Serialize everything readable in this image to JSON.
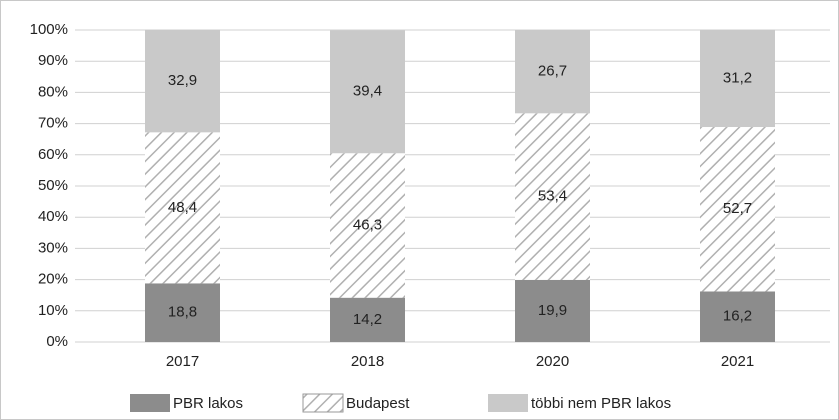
{
  "chart_data": {
    "type": "stacked_bar",
    "categories": [
      "2017",
      "2018",
      "2020",
      "2021"
    ],
    "series": [
      {
        "name": "PBR lakos",
        "color": "#8c8c8c",
        "values": [
          18.8,
          14.2,
          19.9,
          16.2
        ],
        "value_labels": [
          "18,8",
          "14,2",
          "19,9",
          "16,2"
        ]
      },
      {
        "name": "Budapest",
        "color": "#b0b0b0",
        "hatch": true,
        "values": [
          48.4,
          46.3,
          53.4,
          52.7
        ],
        "value_labels": [
          "48,4",
          "46,3",
          "53,4",
          "52,7"
        ]
      },
      {
        "name": "többi nem PBR lakos",
        "color": "#c9c9c9",
        "values": [
          32.9,
          39.4,
          26.7,
          31.2
        ],
        "value_labels": [
          "32,9",
          "39,4",
          "26,7",
          "31,2"
        ]
      }
    ],
    "ylim": [
      0,
      100
    ],
    "yticks": [
      {
        "value": 0,
        "label": "0%"
      },
      {
        "value": 10,
        "label": "10%"
      },
      {
        "value": 20,
        "label": "20%"
      },
      {
        "value": 30,
        "label": "30%"
      },
      {
        "value": 40,
        "label": "40%"
      },
      {
        "value": 50,
        "label": "50%"
      },
      {
        "value": 60,
        "label": "60%"
      },
      {
        "value": 70,
        "label": "70%"
      },
      {
        "value": 80,
        "label": "80%"
      },
      {
        "value": 90,
        "label": "90%"
      },
      {
        "value": 100,
        "label": "100%"
      }
    ],
    "grid": true,
    "legend": "bottom"
  }
}
